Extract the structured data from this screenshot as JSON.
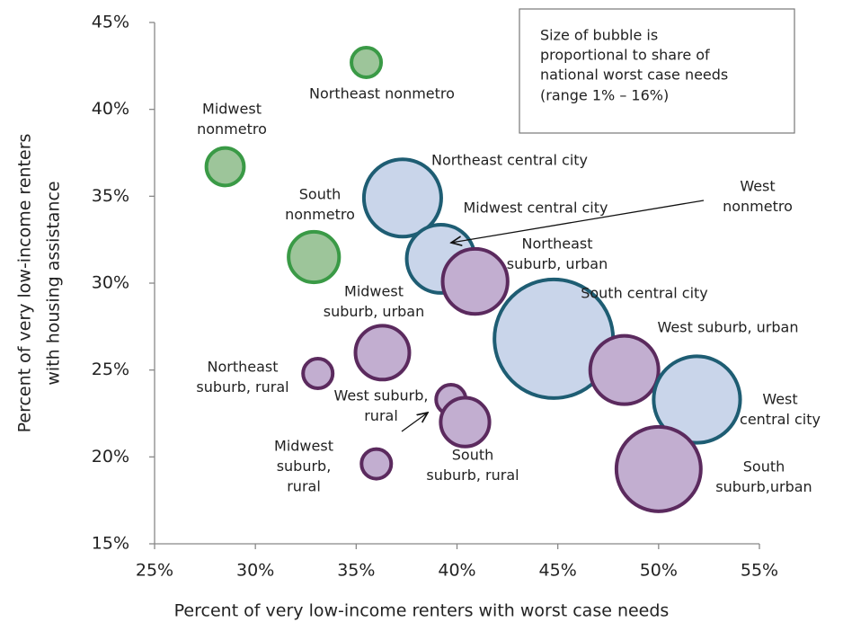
{
  "chart_data": {
    "type": "bubble",
    "xlabel": "Percent of very low-income renters with worst case needs",
    "ylabel": [
      "Percent of very low-income renters",
      "with housing assistance"
    ],
    "annotation": [
      "Size of bubble is",
      "proportional to share of",
      "national worst case needs",
      "(range 1% – 16%)"
    ],
    "xlim": [
      25,
      55
    ],
    "ylim": [
      15,
      45
    ],
    "xticks": [
      {
        "value": 25,
        "label": "25%"
      },
      {
        "value": 30,
        "label": "30%"
      },
      {
        "value": 35,
        "label": "35%"
      },
      {
        "value": 40,
        "label": "40%"
      },
      {
        "value": 45,
        "label": "45%"
      },
      {
        "value": 50,
        "label": "50%"
      },
      {
        "value": 55,
        "label": "55%"
      }
    ],
    "yticks": [
      {
        "value": 15,
        "label": "15%"
      },
      {
        "value": 20,
        "label": "20%"
      },
      {
        "value": 25,
        "label": "25%"
      },
      {
        "value": 30,
        "label": "30%"
      },
      {
        "value": 35,
        "label": "35%"
      },
      {
        "value": 40,
        "label": "40%"
      },
      {
        "value": 45,
        "label": "45%"
      }
    ],
    "points": [
      {
        "label": [
          "Northeast nonmetro"
        ],
        "x": 35.5,
        "y": 42.7,
        "size": 1,
        "color": "#3a9a46",
        "fill": "#9dc59a"
      },
      {
        "label": [
          "Midwest",
          "nonmetro"
        ],
        "x": 28.5,
        "y": 36.7,
        "size": 1.6,
        "color": "#3a9a46",
        "fill": "#9dc59a"
      },
      {
        "label": [
          "South",
          "nonmetro"
        ],
        "x": 32.9,
        "y": 31.5,
        "size": 2.9,
        "color": "#3a9a46",
        "fill": "#9dc59a"
      },
      {
        "label": [
          "West",
          "nonmetro"
        ],
        "x": 39.4,
        "y": 31.8,
        "size": 1.3,
        "color": "#3a9a46",
        "fill": "#9dc59a"
      },
      {
        "label": [
          "Northeast central city"
        ],
        "x": 37.3,
        "y": 34.9,
        "size": 6.8,
        "color": "#1e5d73",
        "fill": "#c9d5ea"
      },
      {
        "label": [
          "Midwest central city"
        ],
        "x": 39.2,
        "y": 31.4,
        "size": 5.3,
        "color": "#1e5d73",
        "fill": "#c9d5ea"
      },
      {
        "label": [
          "Northeast",
          "suburb, urban"
        ],
        "x": 40.9,
        "y": 30.1,
        "size": 4.8,
        "color": "#5b2a5e",
        "fill": "#c2aed0"
      },
      {
        "label": [
          "South central city"
        ],
        "x": 44.8,
        "y": 26.8,
        "size": 16,
        "color": "#1e5d73",
        "fill": "#c9d5ea"
      },
      {
        "label": [
          "West suburb, urban"
        ],
        "x": 48.3,
        "y": 25.0,
        "size": 5.3,
        "color": "#5b2a5e",
        "fill": "#c2aed0"
      },
      {
        "label": [
          "West",
          "central city"
        ],
        "x": 51.9,
        "y": 23.3,
        "size": 8.5,
        "color": "#1e5d73",
        "fill": "#c9d5ea"
      },
      {
        "label": [
          "South",
          "suburb,urban"
        ],
        "x": 50.0,
        "y": 19.3,
        "size": 8.1,
        "color": "#5b2a5e",
        "fill": "#c2aed0"
      },
      {
        "label": [
          "Midwest",
          "suburb, urban"
        ],
        "x": 36.3,
        "y": 26.0,
        "size": 3.3,
        "color": "#5b2a5e",
        "fill": "#c2aed0"
      },
      {
        "label": [
          "Northeast",
          "suburb, rural"
        ],
        "x": 33.1,
        "y": 24.8,
        "size": 1,
        "color": "#5b2a5e",
        "fill": "#c2aed0"
      },
      {
        "label": [
          "West suburb,",
          "rural"
        ],
        "x": 39.7,
        "y": 23.3,
        "size": 1,
        "color": "#5b2a5e",
        "fill": "#c2aed0"
      },
      {
        "label": [
          "South",
          "suburb, rural"
        ],
        "x": 40.4,
        "y": 22.0,
        "size": 2.7,
        "color": "#5b2a5e",
        "fill": "#c2aed0"
      },
      {
        "label": [
          "Midwest",
          "suburb,",
          "rural"
        ],
        "x": 36.0,
        "y": 19.6,
        "size": 1,
        "color": "#5b2a5e",
        "fill": "#c2aed0"
      }
    ]
  }
}
